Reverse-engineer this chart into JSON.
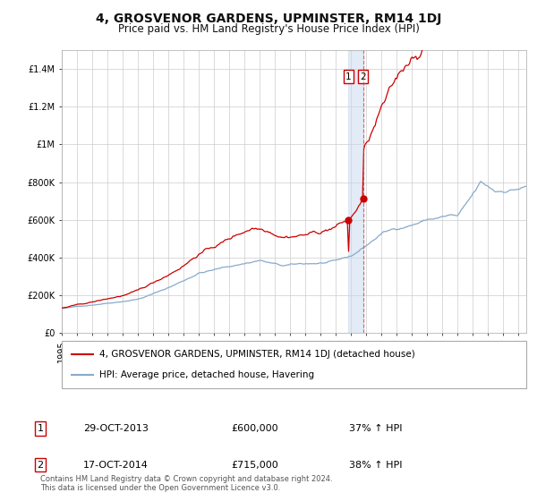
{
  "title": "4, GROSVENOR GARDENS, UPMINSTER, RM14 1DJ",
  "subtitle": "Price paid vs. HM Land Registry's House Price Index (HPI)",
  "background_color": "#ffffff",
  "grid_color": "#cccccc",
  "red_line_color": "#cc0000",
  "blue_line_color": "#88aacc",
  "sale1_date": 2013.83,
  "sale1_price": 600000,
  "sale2_date": 2014.79,
  "sale2_price": 715000,
  "legend_red": "4, GROSVENOR GARDENS, UPMINSTER, RM14 1DJ (detached house)",
  "legend_blue": "HPI: Average price, detached house, Havering",
  "table_row1": [
    "1",
    "29-OCT-2013",
    "£600,000",
    "37% ↑ HPI"
  ],
  "table_row2": [
    "2",
    "17-OCT-2014",
    "£715,000",
    "38% ↑ HPI"
  ],
  "footer": "Contains HM Land Registry data © Crown copyright and database right 2024.\nThis data is licensed under the Open Government Licence v3.0.",
  "ylim": [
    0,
    1500000
  ],
  "xlim_start": 1995.0,
  "xlim_end": 2025.5,
  "yticks": [
    0,
    200000,
    400000,
    600000,
    800000,
    1000000,
    1200000,
    1400000
  ],
  "ylabels": [
    "£0",
    "£200K",
    "£400K",
    "£600K",
    "£800K",
    "£1M",
    "£1.2M",
    "£1.4M"
  ],
  "title_fontsize": 10,
  "subtitle_fontsize": 8.5,
  "tick_fontsize": 7,
  "legend_fontsize": 7.5,
  "table_fontsize": 8,
  "footer_fontsize": 6
}
